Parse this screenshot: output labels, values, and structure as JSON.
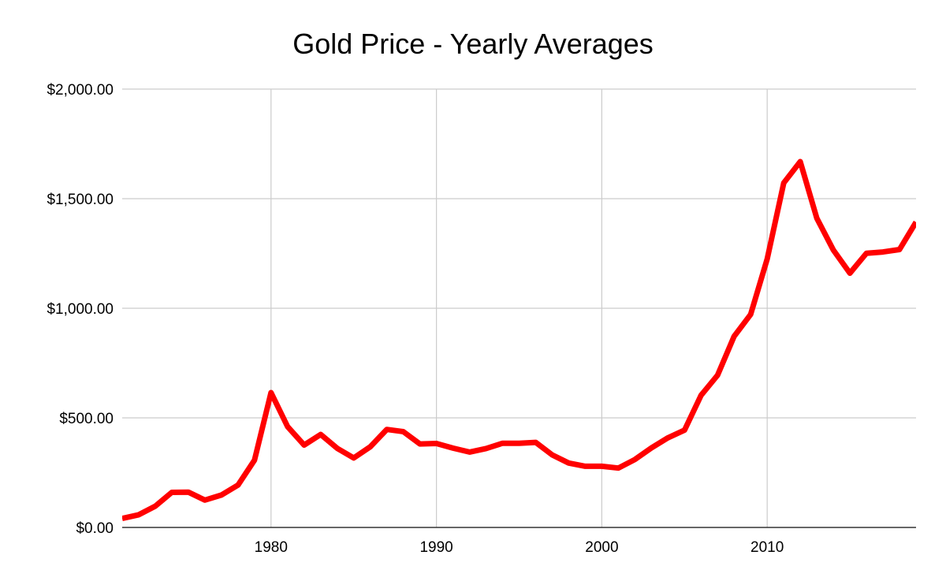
{
  "chart_data": {
    "type": "line",
    "title": "Gold Price  - Yearly Averages",
    "xlabel": "",
    "ylabel": "",
    "xlim": [
      1971,
      2019
    ],
    "ylim": [
      0,
      2000
    ],
    "x_ticks": [
      1980,
      1990,
      2000,
      2010
    ],
    "x_tick_labels": [
      "1980",
      "1990",
      "2000",
      "2010"
    ],
    "y_ticks": [
      0,
      500,
      1000,
      1500,
      2000
    ],
    "y_tick_labels": [
      "$0.00",
      "$500.00",
      "$1,000.00",
      "$1,500.00",
      "$2,000.00"
    ],
    "grid": true,
    "legend": "none",
    "series": [
      {
        "color": "#ff0000",
        "x": [
          1971,
          1972,
          1973,
          1974,
          1975,
          1976,
          1977,
          1978,
          1979,
          1980,
          1981,
          1982,
          1983,
          1984,
          1985,
          1986,
          1987,
          1988,
          1989,
          1990,
          1991,
          1992,
          1993,
          1994,
          1995,
          1996,
          1997,
          1998,
          1999,
          2000,
          2001,
          2002,
          2003,
          2004,
          2005,
          2006,
          2007,
          2008,
          2009,
          2010,
          2011,
          2012,
          2013,
          2014,
          2015,
          2016,
          2017,
          2018,
          2019
        ],
        "y": [
          41,
          58,
          97,
          160,
          161,
          125,
          148,
          193,
          307,
          615,
          460,
          376,
          424,
          361,
          317,
          368,
          447,
          437,
          381,
          383,
          362,
          344,
          360,
          384,
          384,
          388,
          331,
          294,
          279,
          279,
          271,
          310,
          363,
          409,
          444,
          603,
          695,
          872,
          972,
          1225,
          1572,
          1669,
          1411,
          1266,
          1160,
          1251,
          1257,
          1268,
          1393
        ]
      }
    ]
  }
}
